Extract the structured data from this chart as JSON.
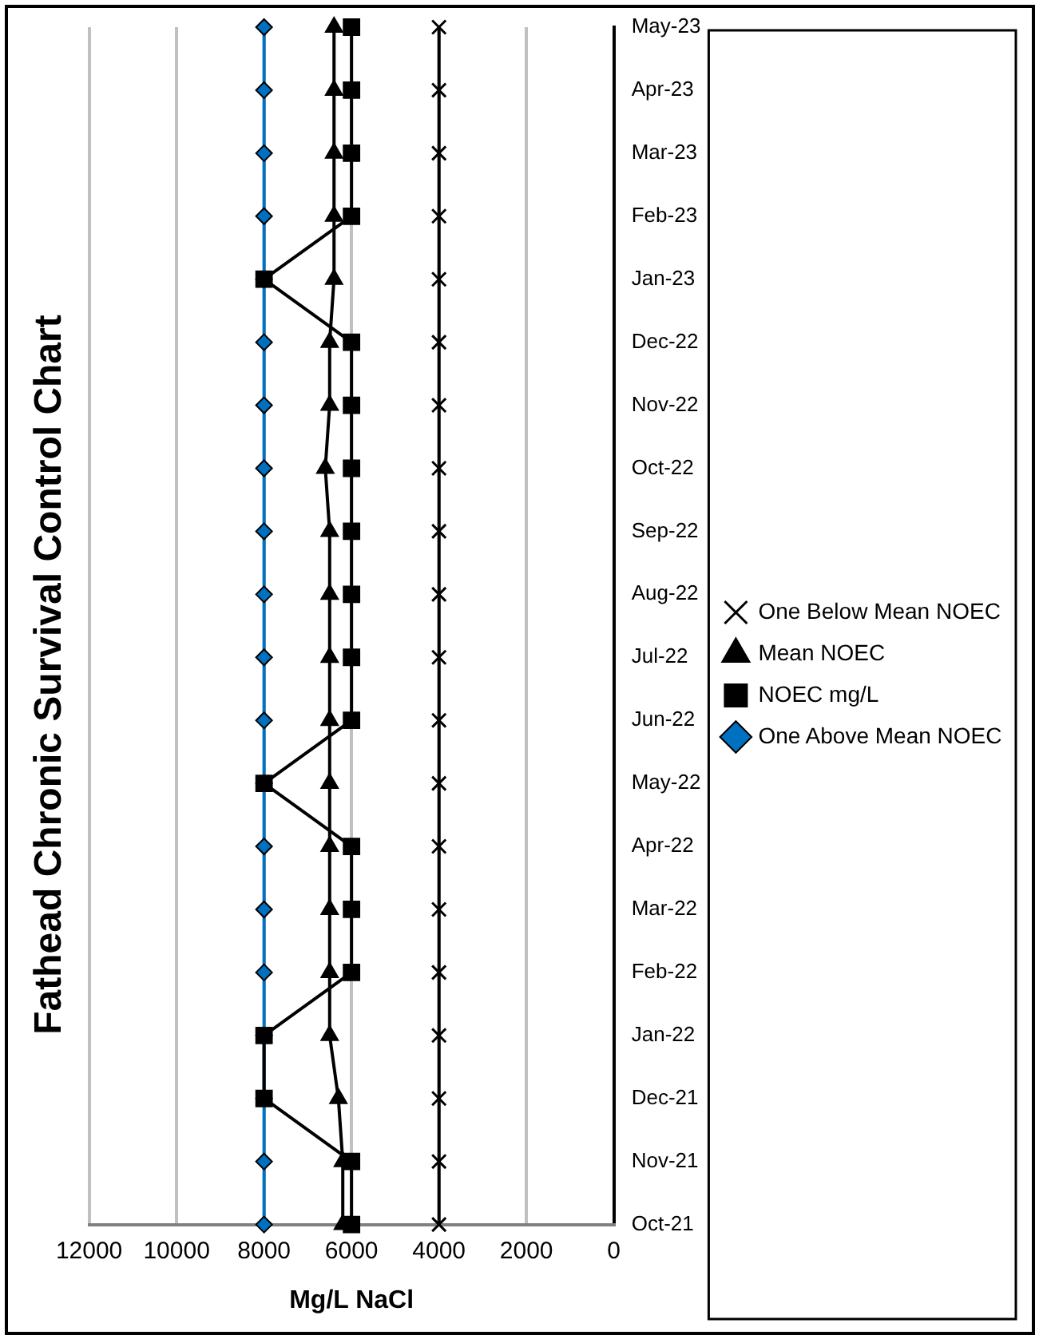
{
  "chart_data": {
    "type": "line",
    "orientation": "horizontal",
    "title": "Fathead Chronic Survival Control Chart",
    "xlabel": "Mg/L NaCl",
    "categories": [
      "May-23",
      "Apr-23",
      "Mar-23",
      "Feb-23",
      "Jan-23",
      "Dec-22",
      "Nov-22",
      "Oct-22",
      "Sep-22",
      "Aug-22",
      "Jul-22",
      "Jun-22",
      "May-22",
      "Apr-22",
      "Mar-22",
      "Feb-22",
      "Jan-22",
      "Dec-21",
      "Nov-21",
      "Oct-21"
    ],
    "series": [
      {
        "name": "One Above Mean NOEC",
        "color": "#0070c0",
        "marker": "diamond",
        "values": [
          8000,
          8000,
          8000,
          8000,
          8000,
          8000,
          8000,
          8000,
          8000,
          8000,
          8000,
          8000,
          8000,
          8000,
          8000,
          8000,
          8000,
          8000,
          8000,
          8000
        ]
      },
      {
        "name": "NOEC mg/L",
        "color": "#000000",
        "marker": "square",
        "values": [
          6000,
          6000,
          6000,
          6000,
          8000,
          6000,
          6000,
          6000,
          6000,
          6000,
          6000,
          6000,
          8000,
          6000,
          6000,
          6000,
          8000,
          8000,
          6000,
          6000
        ]
      },
      {
        "name": "Mean NOEC",
        "color": "#000000",
        "marker": "triangle",
        "values": [
          6400,
          6400,
          6400,
          6400,
          6400,
          6500,
          6500,
          6600,
          6500,
          6500,
          6500,
          6500,
          6500,
          6500,
          6500,
          6500,
          6500,
          6300,
          6200,
          6200
        ]
      },
      {
        "name": "One Below Mean NOEC",
        "color": "#000000",
        "marker": "cross",
        "values": [
          4000,
          4000,
          4000,
          4000,
          4000,
          4000,
          4000,
          4000,
          4000,
          4000,
          4000,
          4000,
          4000,
          4000,
          4000,
          4000,
          4000,
          4000,
          4000,
          4000
        ]
      }
    ],
    "xlim": [
      12000,
      0
    ],
    "xticks": [
      12000,
      10000,
      8000,
      6000,
      4000,
      2000,
      0
    ],
    "grid": "x",
    "legend": "right",
    "line_style": "solid"
  }
}
